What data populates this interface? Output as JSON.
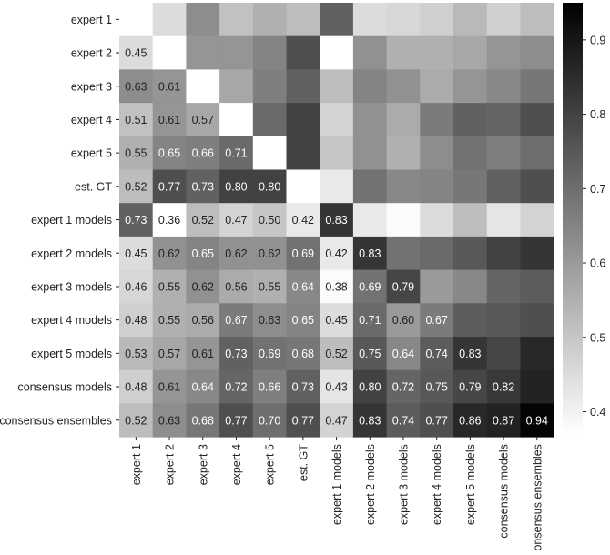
{
  "chart_data": {
    "type": "heatmap",
    "title": "",
    "xlabel": "",
    "ylabel": "",
    "row_labels": [
      "expert 1",
      "expert 2",
      "expert 3",
      "expert 4",
      "expert 5",
      "est. GT",
      "expert 1 models",
      "expert 2 models",
      "expert 3 models",
      "expert 4 models",
      "expert 5 models",
      "consensus models",
      "consensus ensembles"
    ],
    "col_labels": [
      "expert 1",
      "expert 2",
      "expert 3",
      "expert 4",
      "expert 5",
      "est. GT",
      "expert 1 models",
      "expert 2 models",
      "expert 3 models",
      "expert 4 models",
      "expert 5 models",
      "consensus models",
      "consensus ensembles"
    ],
    "values": [
      [
        null,
        0.45,
        0.63,
        0.51,
        0.55,
        0.52,
        0.73,
        0.45,
        0.46,
        0.48,
        0.53,
        0.48,
        0.52
      ],
      [
        0.45,
        null,
        0.61,
        0.61,
        0.65,
        0.77,
        0.36,
        0.62,
        0.55,
        0.55,
        0.57,
        0.61,
        0.63
      ],
      [
        0.63,
        0.61,
        null,
        0.57,
        0.66,
        0.73,
        0.52,
        0.65,
        0.62,
        0.56,
        0.61,
        0.64,
        0.68
      ],
      [
        0.51,
        0.61,
        0.57,
        null,
        0.71,
        0.8,
        0.47,
        0.62,
        0.56,
        0.67,
        0.73,
        0.72,
        0.77
      ],
      [
        0.55,
        0.65,
        0.66,
        0.71,
        null,
        0.8,
        0.5,
        0.62,
        0.55,
        0.63,
        0.69,
        0.66,
        0.7
      ],
      [
        0.52,
        0.77,
        0.73,
        0.8,
        0.8,
        null,
        0.42,
        0.69,
        0.64,
        0.65,
        0.68,
        0.73,
        0.77
      ],
      [
        0.73,
        0.36,
        0.52,
        0.47,
        0.5,
        0.42,
        0.83,
        0.42,
        0.38,
        0.45,
        0.52,
        0.43,
        0.47
      ],
      [
        0.45,
        0.62,
        0.65,
        0.62,
        0.62,
        0.69,
        0.42,
        0.83,
        0.69,
        0.71,
        0.75,
        0.8,
        0.83
      ],
      [
        0.46,
        0.55,
        0.62,
        0.56,
        0.55,
        0.64,
        0.38,
        0.69,
        0.79,
        0.6,
        0.64,
        0.72,
        0.74
      ],
      [
        0.48,
        0.55,
        0.56,
        0.67,
        0.63,
        0.65,
        0.45,
        0.71,
        0.6,
        0.67,
        0.74,
        0.75,
        0.77
      ],
      [
        0.53,
        0.57,
        0.61,
        0.73,
        0.69,
        0.68,
        0.52,
        0.75,
        0.64,
        0.74,
        0.83,
        0.79,
        0.86
      ],
      [
        0.48,
        0.61,
        0.64,
        0.72,
        0.66,
        0.73,
        0.43,
        0.8,
        0.72,
        0.75,
        0.79,
        0.82,
        0.87
      ],
      [
        0.52,
        0.63,
        0.68,
        0.77,
        0.7,
        0.77,
        0.47,
        0.83,
        0.74,
        0.77,
        0.86,
        0.87,
        0.94
      ]
    ],
    "annotated": "lower-triangle-and-diagonal-from-row-7",
    "colorbar": {
      "min": 0.37,
      "max": 0.95,
      "ticks": [
        0.4,
        0.5,
        0.6,
        0.7,
        0.8,
        0.9
      ],
      "tick_labels": [
        "0.4",
        "0.5",
        "0.6",
        "0.7",
        "0.8",
        "0.9"
      ],
      "colormap": "greys",
      "low_color": "#ffffff",
      "high_color": "#000000"
    },
    "grid": false,
    "legend": "colorbar-right"
  }
}
